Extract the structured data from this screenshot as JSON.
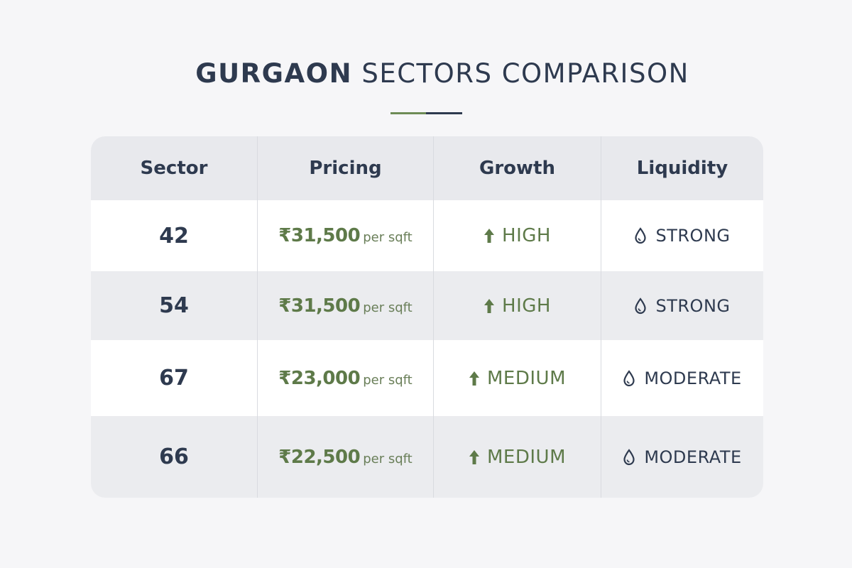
{
  "title": {
    "bold": "GURGAON",
    "light": "SECTORS COMPARISON"
  },
  "colors": {
    "accent_green": "#6e8c56",
    "navy": "#2e3a4f"
  },
  "table": {
    "headers": [
      "Sector",
      "Pricing",
      "Growth",
      "Liquidity"
    ],
    "rows": [
      {
        "sector": "42",
        "price": "₹31,500",
        "unit": "per sqft",
        "growth": "HIGH",
        "growth_icon": "arrow-up-icon",
        "liquidity": "STRONG",
        "liquidity_icon": "droplet-icon"
      },
      {
        "sector": "54",
        "price": "₹31,500",
        "unit": "per sqft",
        "growth": "HIGH",
        "growth_icon": "arrow-up-icon",
        "liquidity": "STRONG",
        "liquidity_icon": "droplet-icon"
      },
      {
        "sector": "67",
        "price": "₹23,000",
        "unit": "per sqft",
        "growth": "MEDIUM",
        "growth_icon": "arrow-up-icon",
        "liquidity": "MODERATE",
        "liquidity_icon": "droplet-icon"
      },
      {
        "sector": "66",
        "price": "₹22,500",
        "unit": "per sqft",
        "growth": "MEDIUM",
        "growth_icon": "arrow-up-icon",
        "liquidity": "MODERATE",
        "liquidity_icon": "droplet-icon"
      }
    ]
  }
}
